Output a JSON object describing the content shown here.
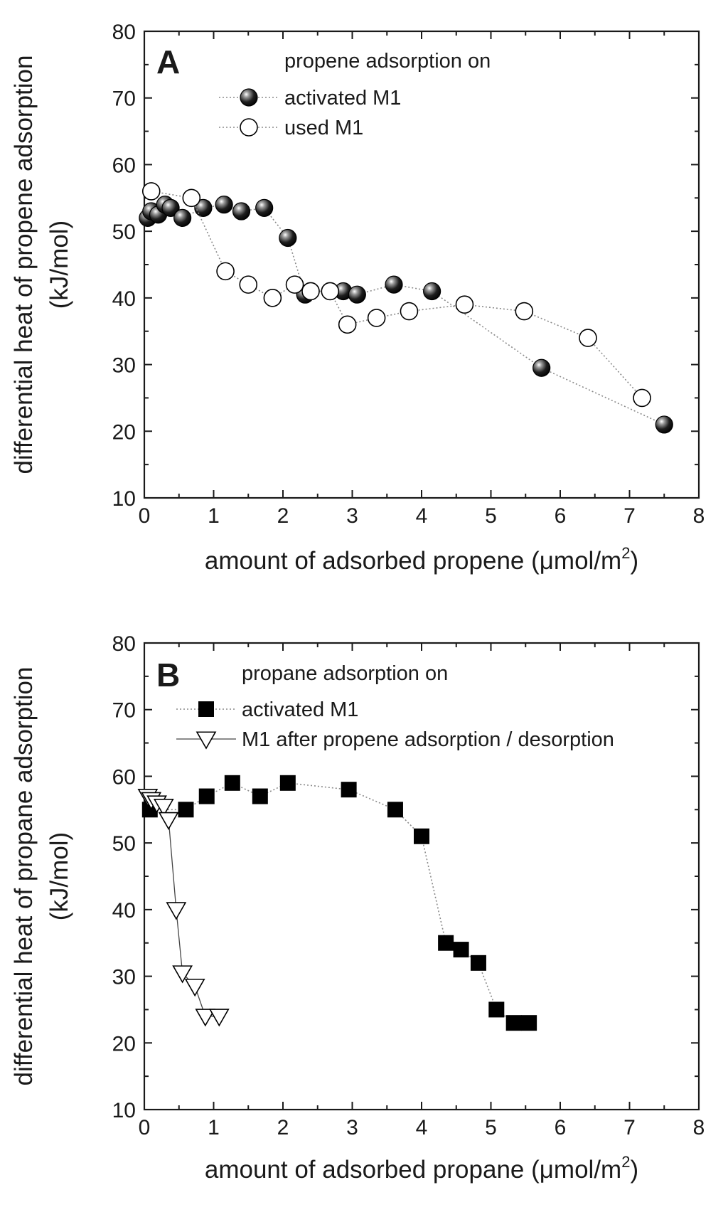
{
  "chart_data": [
    {
      "type": "scatter",
      "panel_label": "A",
      "xlabel": "amount of adsorbed propene (",
      "xlabel_unit": "μmol/m",
      "xlabel_sup": "2",
      "xlabel_close": ")",
      "ylabel_line1": "differential heat of propene adsorption",
      "ylabel_line2": "(kJ/mol)",
      "xlim": [
        0,
        8
      ],
      "ylim": [
        10,
        80
      ],
      "x_ticks": [
        "0",
        "1",
        "2",
        "3",
        "4",
        "5",
        "6",
        "7",
        "8"
      ],
      "y_ticks": [
        "10",
        "20",
        "30",
        "40",
        "50",
        "60",
        "70",
        "80"
      ],
      "legend_title": "propene adsorption on",
      "legend_position": "top-right",
      "series": [
        {
          "name": "activated M1",
          "marker": "sphere",
          "line": "dotted",
          "x": [
            0.05,
            0.1,
            0.2,
            0.3,
            0.38,
            0.55,
            0.85,
            1.15,
            1.4,
            1.73,
            2.07,
            2.32,
            2.87,
            3.07,
            3.6,
            4.15,
            5.73,
            7.5
          ],
          "y": [
            52,
            53,
            52.5,
            54,
            53.5,
            52,
            53.5,
            54,
            53,
            53.5,
            49,
            40.5,
            41,
            40.5,
            42,
            41,
            29.5,
            21
          ]
        },
        {
          "name": "used M1",
          "marker": "open-circle",
          "line": "dotted",
          "x": [
            0.1,
            0.68,
            1.17,
            1.5,
            1.85,
            2.17,
            2.4,
            2.68,
            2.93,
            3.35,
            3.82,
            4.62,
            5.48,
            6.4,
            7.18
          ],
          "y": [
            56,
            55,
            44,
            42,
            40,
            42,
            41,
            41,
            36,
            37,
            38,
            39,
            38,
            34,
            25
          ]
        }
      ]
    },
    {
      "type": "scatter",
      "panel_label": "B",
      "xlabel": "amount of adsorbed propane (",
      "xlabel_unit": "μmol/m",
      "xlabel_sup": "2",
      "xlabel_close": ")",
      "ylabel_line1": "differential heat of propane adsorption",
      "ylabel_line2": "(kJ/mol)",
      "xlim": [
        0,
        8
      ],
      "ylim": [
        10,
        80
      ],
      "x_ticks": [
        "0",
        "1",
        "2",
        "3",
        "4",
        "5",
        "6",
        "7",
        "8"
      ],
      "y_ticks": [
        "10",
        "20",
        "30",
        "40",
        "50",
        "60",
        "70",
        "80"
      ],
      "legend_title": "propane adsorption on",
      "legend_position": "top-right",
      "series": [
        {
          "name": "activated M1",
          "marker": "filled-square",
          "line": "dotted",
          "x": [
            0.08,
            0.6,
            0.9,
            1.27,
            1.67,
            2.07,
            2.95,
            3.62,
            4.0,
            4.35,
            4.57,
            4.82,
            5.08,
            5.33,
            5.55
          ],
          "y": [
            55,
            55,
            57,
            59,
            57,
            59,
            58,
            55,
            51,
            35,
            34,
            32,
            25,
            23,
            23
          ]
        },
        {
          "name": "M1 after propene adsorption / desorption",
          "marker": "open-triangle-down",
          "line": "solid",
          "x": [
            0.05,
            0.1,
            0.18,
            0.28,
            0.35,
            0.46,
            0.55,
            0.73,
            0.88,
            1.08
          ],
          "y": [
            57,
            56.5,
            56,
            55.5,
            53.5,
            40,
            30.5,
            28.5,
            24,
            24
          ]
        }
      ]
    }
  ]
}
